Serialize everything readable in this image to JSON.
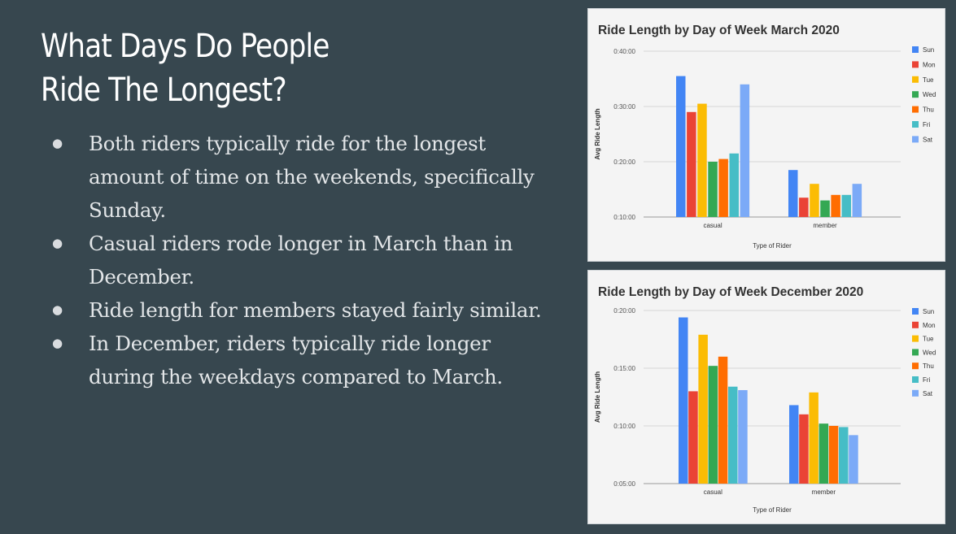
{
  "slide": {
    "title_line1": "What Days Do People",
    "title_line2": "Ride The Longest?",
    "bullets": [
      "Both riders typically ride for the longest amount of time on the weekends, specifically Sunday.",
      "Casual riders rode longer in March than in December.",
      "Ride length for members stayed fairly similar.",
      "In December, riders typically ride longer during the weekdays compared to March."
    ]
  },
  "chart_data": [
    {
      "type": "bar",
      "title": "Ride Length by Day of Week March 2020",
      "xlabel": "Type of Rider",
      "ylabel": "Avg Ride Length",
      "categories": [
        "casual",
        "member"
      ],
      "ylim_minutes": [
        10,
        40
      ],
      "yticks_minutes": [
        10,
        20,
        30,
        40
      ],
      "ytick_labels": [
        "0:10:00",
        "0:20:00",
        "0:30:00",
        "0:40:00"
      ],
      "grid": true,
      "legend_position": "right",
      "series": [
        {
          "name": "Sun",
          "color": "#4285f4",
          "values": [
            35.5,
            18.5
          ]
        },
        {
          "name": "Mon",
          "color": "#ea4335",
          "values": [
            29.0,
            13.5
          ]
        },
        {
          "name": "Tue",
          "color": "#fbbc04",
          "values": [
            30.5,
            16.0
          ]
        },
        {
          "name": "Wed",
          "color": "#34a853",
          "values": [
            20.0,
            13.0
          ]
        },
        {
          "name": "Thu",
          "color": "#ff6d01",
          "values": [
            20.5,
            14.0
          ]
        },
        {
          "name": "Fri",
          "color": "#46bdc6",
          "values": [
            21.5,
            14.0
          ]
        },
        {
          "name": "Sat",
          "color": "#7baaf7",
          "values": [
            34.0,
            16.0
          ]
        }
      ]
    },
    {
      "type": "bar",
      "title": "Ride Length by Day of Week December 2020",
      "xlabel": "Type of Rider",
      "ylabel": "Avg Ride Length",
      "categories": [
        "casual",
        "member"
      ],
      "ylim_minutes": [
        5,
        20
      ],
      "yticks_minutes": [
        5,
        10,
        15,
        20
      ],
      "ytick_labels": [
        "0:05:00",
        "0:10:00",
        "0:15:00",
        "0:20:00"
      ],
      "grid": true,
      "legend_position": "right",
      "series": [
        {
          "name": "Sun",
          "color": "#4285f4",
          "values": [
            19.4,
            11.8
          ]
        },
        {
          "name": "Mon",
          "color": "#ea4335",
          "values": [
            13.0,
            11.0
          ]
        },
        {
          "name": "Tue",
          "color": "#fbbc04",
          "values": [
            17.9,
            12.9
          ]
        },
        {
          "name": "Wed",
          "color": "#34a853",
          "values": [
            15.2,
            10.2
          ]
        },
        {
          "name": "Thu",
          "color": "#ff6d01",
          "values": [
            16.0,
            10.0
          ]
        },
        {
          "name": "Fri",
          "color": "#46bdc6",
          "values": [
            13.4,
            9.9
          ]
        },
        {
          "name": "Sat",
          "color": "#7baaf7",
          "values": [
            13.1,
            9.2
          ]
        }
      ]
    }
  ]
}
